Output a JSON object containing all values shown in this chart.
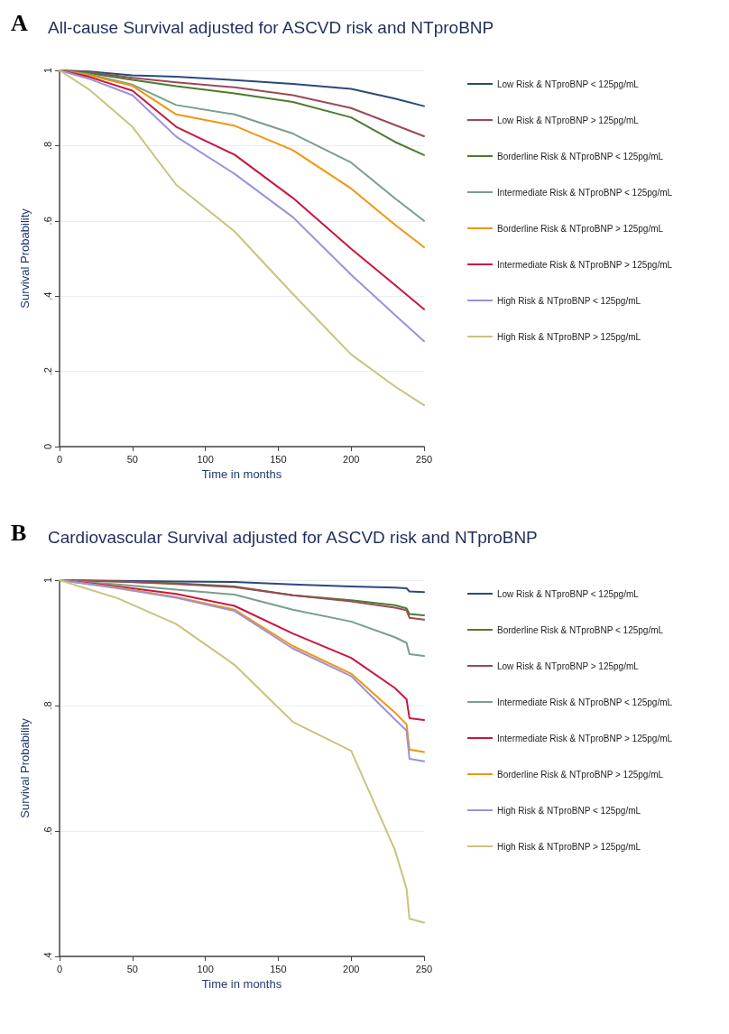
{
  "chart_data": [
    {
      "type": "line",
      "title": "All-cause Survival adjusted for ASCVD risk and NTproBNP",
      "xlabel": "Time in months",
      "ylabel": "Survival Probability",
      "annotations": [
        "A"
      ],
      "x": [
        0,
        20,
        50,
        80,
        120,
        160,
        200,
        230,
        250
      ],
      "series": [
        {
          "name": "Low Risk & NTproBNP < 125pg/mL",
          "color": "#2b4a7a",
          "values": [
            1,
            0.997,
            0.987,
            0.983,
            0.974,
            0.964,
            0.951,
            0.925,
            0.905
          ]
        },
        {
          "name": "Low Risk & NTproBNP > 125pg/mL",
          "color": "#9b4a55",
          "values": [
            1,
            0.995,
            0.98,
            0.968,
            0.955,
            0.934,
            0.9,
            0.855,
            0.825
          ]
        },
        {
          "name": "Borderline Risk & NTproBNP < 125pg/mL",
          "color": "#4f7a2f",
          "values": [
            1,
            0.993,
            0.975,
            0.958,
            0.939,
            0.916,
            0.875,
            0.81,
            0.775
          ]
        },
        {
          "name": "Intermediate Risk & NTproBNP < 125pg/mL",
          "color": "#7a9e8c",
          "values": [
            1,
            0.99,
            0.962,
            0.908,
            0.883,
            0.832,
            0.755,
            0.66,
            0.6
          ]
        },
        {
          "name": "Borderline Risk & NTproBNP > 125pg/mL",
          "color": "#f0960f",
          "values": [
            1,
            0.987,
            0.959,
            0.883,
            0.853,
            0.788,
            0.686,
            0.59,
            0.53
          ]
        },
        {
          "name": "Intermediate Risk & NTproBNP > 125pg/mL",
          "color": "#c8163f",
          "values": [
            1,
            0.983,
            0.946,
            0.85,
            0.776,
            0.661,
            0.526,
            0.43,
            0.365
          ]
        },
        {
          "name": "High Risk & NTproBNP < 125pg/mL",
          "color": "#9c91dc",
          "values": [
            1,
            0.978,
            0.934,
            0.824,
            0.725,
            0.61,
            0.457,
            0.35,
            0.28
          ]
        },
        {
          "name": "High Risk & NTproBNP > 125pg/mL",
          "color": "#c8c47e",
          "values": [
            1,
            0.95,
            0.85,
            0.696,
            0.572,
            0.406,
            0.245,
            0.16,
            0.11
          ]
        }
      ],
      "xlim": [
        0,
        250
      ],
      "xticks": [
        0,
        50,
        100,
        150,
        200,
        250
      ],
      "ylim": [
        0,
        1
      ],
      "yticks": [
        {
          "value": 0,
          "label": "0"
        },
        {
          "value": 0.2,
          "label": ".2"
        },
        {
          "value": 0.4,
          "label": ".4"
        },
        {
          "value": 0.6,
          "label": ".6"
        },
        {
          "value": 0.8,
          "label": ".8"
        },
        {
          "value": 1,
          "label": "1"
        }
      ],
      "grid": "y",
      "legend": "right",
      "marker": "none",
      "line_style": "solid"
    },
    {
      "type": "line",
      "title": "Cardiovascular Survival adjusted for ASCVD risk and NTproBNP",
      "xlabel": "Time in months",
      "ylabel": "Survival Probability",
      "annotations": [
        "B"
      ],
      "x": [
        0,
        40,
        80,
        120,
        160,
        200,
        230,
        238,
        240,
        250
      ],
      "series": [
        {
          "name": "Low Risk & NTproBNP < 125pg/mL",
          "color": "#2b4a7a",
          "values": [
            1,
            0.999,
            0.998,
            0.997,
            0.993,
            0.99,
            0.988,
            0.987,
            0.982,
            0.981
          ]
        },
        {
          "name": "Borderline Risk & NTproBNP < 125pg/mL",
          "color": "#4f7a2f",
          "values": [
            1,
            0.998,
            0.995,
            0.99,
            0.976,
            0.968,
            0.96,
            0.955,
            0.946,
            0.944
          ]
        },
        {
          "name": "Low Risk & NTproBNP > 125pg/mL",
          "color": "#9b4a55",
          "values": [
            1,
            0.998,
            0.994,
            0.989,
            0.976,
            0.966,
            0.956,
            0.952,
            0.94,
            0.937
          ]
        },
        {
          "name": "Intermediate Risk & NTproBNP < 125pg/mL",
          "color": "#7a9e8c",
          "values": [
            1,
            0.993,
            0.985,
            0.977,
            0.953,
            0.934,
            0.909,
            0.9,
            0.882,
            0.879
          ]
        },
        {
          "name": "Intermediate Risk & NTproBNP > 125pg/mL",
          "color": "#c8163f",
          "values": [
            1,
            0.99,
            0.978,
            0.959,
            0.915,
            0.876,
            0.828,
            0.81,
            0.78,
            0.777
          ]
        },
        {
          "name": "Borderline Risk & NTproBNP > 125pg/mL",
          "color": "#f0960f",
          "values": [
            1,
            0.988,
            0.973,
            0.953,
            0.895,
            0.851,
            0.789,
            0.77,
            0.73,
            0.726
          ]
        },
        {
          "name": "High Risk & NTproBNP < 125pg/mL",
          "color": "#9c91dc",
          "values": [
            1,
            0.987,
            0.972,
            0.951,
            0.891,
            0.847,
            0.778,
            0.76,
            0.715,
            0.711
          ]
        },
        {
          "name": "High Risk & NTproBNP > 125pg/mL",
          "color": "#c8c47e",
          "values": [
            1,
            0.971,
            0.93,
            0.865,
            0.774,
            0.728,
            0.57,
            0.508,
            0.46,
            0.454
          ]
        }
      ],
      "xlim": [
        0,
        250
      ],
      "xticks": [
        0,
        50,
        100,
        150,
        200,
        250
      ],
      "ylim": [
        0.4,
        1
      ],
      "yticks": [
        {
          "value": 0.4,
          "label": ".4"
        },
        {
          "value": 0.6,
          "label": ".6"
        },
        {
          "value": 0.8,
          "label": ".8"
        },
        {
          "value": 1,
          "label": "1"
        }
      ],
      "grid": "y",
      "legend": "right",
      "marker": "none",
      "line_style": "solid"
    }
  ]
}
